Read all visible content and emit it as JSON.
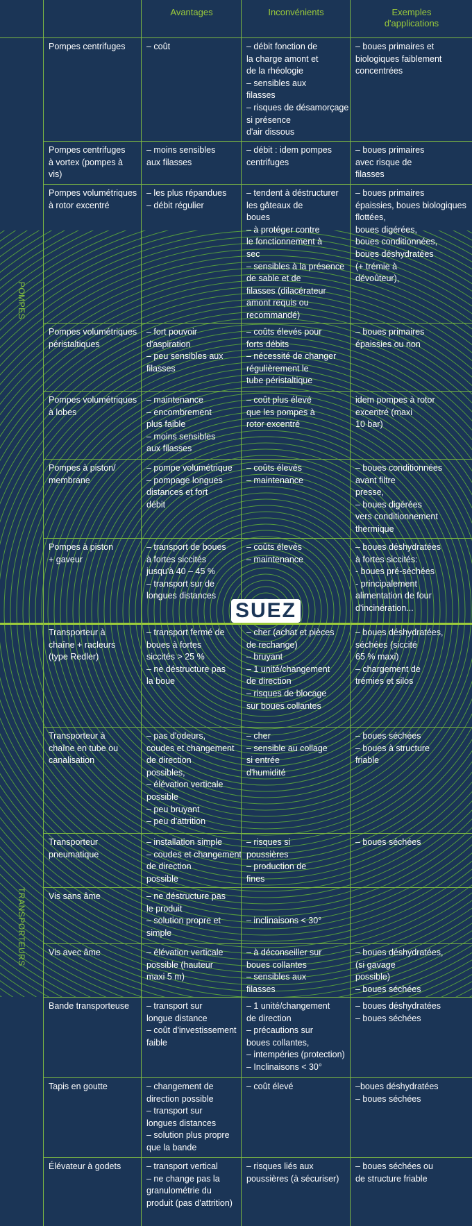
{
  "table": {
    "headers": [
      [
        "Avantages"
      ],
      [
        "Inconvénients"
      ],
      [
        "Exemples",
        "d'applications"
      ]
    ],
    "groups": [
      "POMPES",
      "TRANSPORTEURS"
    ],
    "logo": "SUEZ",
    "rows": [
      [
        [
          "Pompes centrifuges"
        ],
        [
          "– coût"
        ],
        [
          "– débit fonction de",
          "la charge amont et",
          "de la rhéologie",
          "– sensibles aux",
          "filasses",
          "– risques de désamorçage",
          "si présence",
          "d'air dissous"
        ],
        [
          "– boues primaires et",
          "biologiques faiblement",
          "concentrées"
        ]
      ],
      [
        [
          "Pompes centrifuges",
          "à vortex (pompes à",
          "vis)"
        ],
        [
          "– moins sensibles",
          "aux filasses"
        ],
        [
          "– débit : idem pompes",
          "centrifuges"
        ],
        [
          "– boues primaires",
          "avec risque de",
          "filasses"
        ]
      ],
      [
        [
          "Pompes volumétriques",
          "à rotor excentré"
        ],
        [
          "– les plus répandues",
          "– débit régulier"
        ],
        [
          "– tendent à déstructurer",
          "les gâteaux de",
          "boues",
          "– à protéger contre",
          "le fonctionnement à",
          "sec",
          "– sensibles à la présence",
          "de sable et de",
          "filasses (dilacérateur",
          "amont requis ou",
          "recommandé)"
        ],
        [
          "– boues primaires",
          "épaissies, boues biologiques",
          "flottées,",
          "boues digérées,",
          "boues conditionnées,",
          "boues déshydratées",
          "(+ trémie à",
          "dévoûteur),"
        ]
      ],
      [
        [
          "Pompes volumétriques",
          "péristaltiques"
        ],
        [
          "– fort pouvoir",
          "d'aspiration",
          "– peu sensibles aux",
          "filasses"
        ],
        [
          "– coûts élevés pour",
          "forts débits",
          "– nécessité de changer",
          "régulièrement le",
          "tube péristaltique"
        ],
        [
          "– boues primaires",
          "épaissies ou non"
        ]
      ],
      [
        [
          "Pompes volumétriques",
          "à lobes"
        ],
        [
          "– maintenance",
          "– encombrement",
          "plus faible",
          "– moins sensibles",
          "aux filasses"
        ],
        [
          "– coût plus élevé",
          "que les pompes à",
          "rotor excentré"
        ],
        [
          "idem pompes à rotor",
          "excentré (maxi",
          "10 bar)"
        ]
      ],
      [
        [
          "Pompes à piston/",
          "membrane"
        ],
        [
          "– pompe volumétrique",
          "– pompage longues",
          "distances et fort",
          "débit"
        ],
        [
          "– coûts élevés",
          "– maintenance"
        ],
        [
          "– boues conditionnées",
          "avant filtre",
          "presse,",
          "– boues digérées",
          "vers conditionnement",
          "thermique"
        ]
      ],
      [
        [
          "Pompes à piston",
          "+ gaveur"
        ],
        [
          "– transport de boues",
          "à fortes siccités",
          "jusqu'à 40 – 45 %",
          "– transport sur de",
          "longues distances"
        ],
        [
          "– coûts élevés",
          "– maintenance"
        ],
        [
          "– boues déshydratées",
          "à fortes siccités:",
          "- boues pré-séchées",
          "- principalement",
          "alimentation de four",
          "d'incinération..."
        ]
      ],
      [
        [
          "Transporteur à",
          "chaîne + racleurs",
          "(type Redler)"
        ],
        [
          "– transport fermé de",
          "boues à fortes",
          "siccités > 25 %",
          "– ne déstructure pas",
          "la boue"
        ],
        [
          "– cher (achat et pièces",
          "de rechange)",
          "– bruyant",
          "– 1 unité/changement",
          "de direction",
          "– risques de blocage",
          "sur boues collantes"
        ],
        [
          "– boues déshydratées,",
          "séchées (siccité",
          "65 % maxi)",
          "– chargement de",
          "trémies et silos"
        ]
      ],
      [
        [
          "Transporteur à",
          "chaîne en tube ou",
          "canalisation"
        ],
        [
          "– pas d'odeurs,",
          "coudes et changement",
          "de direction",
          "possibles,",
          "– élévation verticale",
          "possible",
          "– peu bruyant",
          "– peu d'attrition"
        ],
        [
          "– cher",
          "– sensible au collage",
          "si entrée",
          "d'humidité"
        ],
        [
          "– boues séchées",
          "– boues à structure",
          "friable"
        ]
      ],
      [
        [
          "Transporteur",
          "pneumatique"
        ],
        [
          "– installation simple",
          "– coudes et changement",
          "de direction",
          "possible"
        ],
        [
          "– risques si",
          "poussières",
          "– production de",
          "fines"
        ],
        [
          "– boues séchées"
        ]
      ],
      [
        [
          "Vis sans âme"
        ],
        [
          "– ne déstructure pas",
          "le produit",
          "– solution propre et",
          "simple"
        ],
        [
          "– inclinaisons < 30°"
        ],
        []
      ],
      [
        [
          "Vis avec âme"
        ],
        [
          "– élévation verticale",
          "possible (hauteur",
          "maxi 5 m)"
        ],
        [
          "– à déconseiller sur",
          "boues collantes",
          "– sensibles aux",
          "filasses"
        ],
        [
          "– boues déshydratées,",
          "(si gavage",
          "possible)",
          "– boues séchées"
        ]
      ],
      [
        [
          "Bande transporteuse"
        ],
        [
          "– transport sur",
          "longue distance",
          "– coût d'investissement",
          "faible"
        ],
        [
          "– 1 unité/changement",
          "de direction",
          "– précautions sur",
          "boues collantes,",
          "– intempéries (protection)",
          "– Inclinaisons < 30°"
        ],
        [
          "– boues déshydratées",
          "– boues séchées"
        ]
      ],
      [
        [
          "Tapis en goutte"
        ],
        [
          "– changement de",
          "direction possible",
          "– transport sur",
          "longues distances",
          "– solution plus propre",
          "que la bande"
        ],
        [
          "– coût élevé"
        ],
        [
          "–boues déshydratées",
          "– boues séchées"
        ]
      ],
      [
        [
          "Élévateur à godets"
        ],
        [
          "– transport vertical",
          "– ne change pas la",
          "granulométrie du",
          "produit (pas d'attrition)"
        ],
        [
          "– risques liés aux",
          "poussières (à sécuriser)"
        ],
        [
          "– boues séchées ou",
          "de structure friable"
        ]
      ]
    ]
  }
}
